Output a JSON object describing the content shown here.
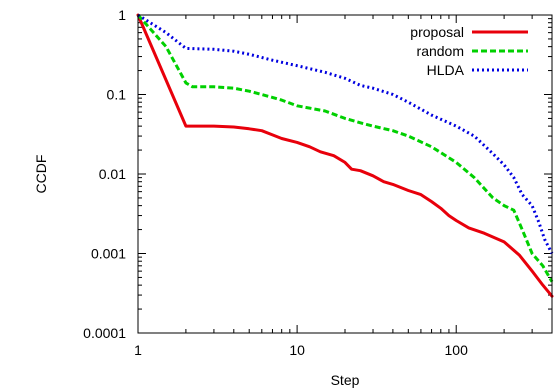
{
  "chart_data": {
    "type": "line",
    "title": "",
    "xlabel": "Step",
    "ylabel": "CCDF",
    "x_scale": "log",
    "y_scale": "log",
    "xlim": [
      1,
      400
    ],
    "ylim": [
      0.0001,
      1
    ],
    "x_ticks": [
      {
        "value": 1,
        "label": "1"
      },
      {
        "value": 10,
        "label": "10"
      },
      {
        "value": 100,
        "label": "100"
      }
    ],
    "y_ticks": [
      {
        "value": 1,
        "label": "1"
      },
      {
        "value": 0.1,
        "label": "0.1"
      },
      {
        "value": 0.01,
        "label": "0.01"
      },
      {
        "value": 0.001,
        "label": "0.001"
      },
      {
        "value": 0.0001,
        "label": "0.0001"
      }
    ],
    "grid": false,
    "legend_position": "top-right",
    "series": [
      {
        "name": "proposal",
        "color": "#e8000b",
        "style": "solid",
        "points": [
          [
            1,
            1
          ],
          [
            2,
            0.04
          ],
          [
            3,
            0.04
          ],
          [
            4,
            0.039
          ],
          [
            5,
            0.037
          ],
          [
            6,
            0.035
          ],
          [
            7,
            0.031
          ],
          [
            8,
            0.028
          ],
          [
            10,
            0.025
          ],
          [
            12,
            0.022
          ],
          [
            14,
            0.019
          ],
          [
            17,
            0.017
          ],
          [
            20,
            0.014
          ],
          [
            22,
            0.0115
          ],
          [
            25,
            0.011
          ],
          [
            30,
            0.0095
          ],
          [
            35,
            0.008
          ],
          [
            40,
            0.0074
          ],
          [
            50,
            0.0062
          ],
          [
            60,
            0.0055
          ],
          [
            70,
            0.0045
          ],
          [
            80,
            0.0037
          ],
          [
            90,
            0.003
          ],
          [
            100,
            0.0026
          ],
          [
            120,
            0.0021
          ],
          [
            150,
            0.0018
          ],
          [
            200,
            0.0014
          ],
          [
            250,
            0.00095
          ],
          [
            300,
            0.0006
          ],
          [
            350,
            0.0004
          ],
          [
            400,
            0.00029
          ]
        ]
      },
      {
        "name": "random",
        "color": "#00d000",
        "style": "dashed",
        "points": [
          [
            1,
            1
          ],
          [
            1.5,
            0.4
          ],
          [
            2,
            0.14
          ],
          [
            2.2,
            0.125
          ],
          [
            3,
            0.125
          ],
          [
            4,
            0.12
          ],
          [
            5,
            0.11
          ],
          [
            6,
            0.1
          ],
          [
            8,
            0.085
          ],
          [
            10,
            0.072
          ],
          [
            15,
            0.062
          ],
          [
            20,
            0.05
          ],
          [
            25,
            0.044
          ],
          [
            30,
            0.04
          ],
          [
            40,
            0.035
          ],
          [
            50,
            0.03
          ],
          [
            70,
            0.022
          ],
          [
            100,
            0.014
          ],
          [
            130,
            0.009
          ],
          [
            170,
            0.005
          ],
          [
            200,
            0.004
          ],
          [
            230,
            0.0035
          ],
          [
            260,
            0.002
          ],
          [
            300,
            0.001
          ],
          [
            350,
            0.0007
          ],
          [
            400,
            0.00044
          ]
        ]
      },
      {
        "name": "HLDA",
        "color": "#0000e0",
        "style": "dotted",
        "points": [
          [
            1,
            1
          ],
          [
            1.5,
            0.6
          ],
          [
            2,
            0.38
          ],
          [
            3,
            0.37
          ],
          [
            4,
            0.35
          ],
          [
            5,
            0.32
          ],
          [
            7,
            0.27
          ],
          [
            10,
            0.23
          ],
          [
            15,
            0.19
          ],
          [
            20,
            0.16
          ],
          [
            25,
            0.13
          ],
          [
            30,
            0.12
          ],
          [
            40,
            0.1
          ],
          [
            50,
            0.08
          ],
          [
            70,
            0.055
          ],
          [
            100,
            0.04
          ],
          [
            130,
            0.03
          ],
          [
            170,
            0.018
          ],
          [
            200,
            0.013
          ],
          [
            230,
            0.009
          ],
          [
            260,
            0.0055
          ],
          [
            300,
            0.004
          ],
          [
            330,
            0.0025
          ],
          [
            360,
            0.0015
          ],
          [
            400,
            0.001
          ]
        ]
      }
    ]
  }
}
